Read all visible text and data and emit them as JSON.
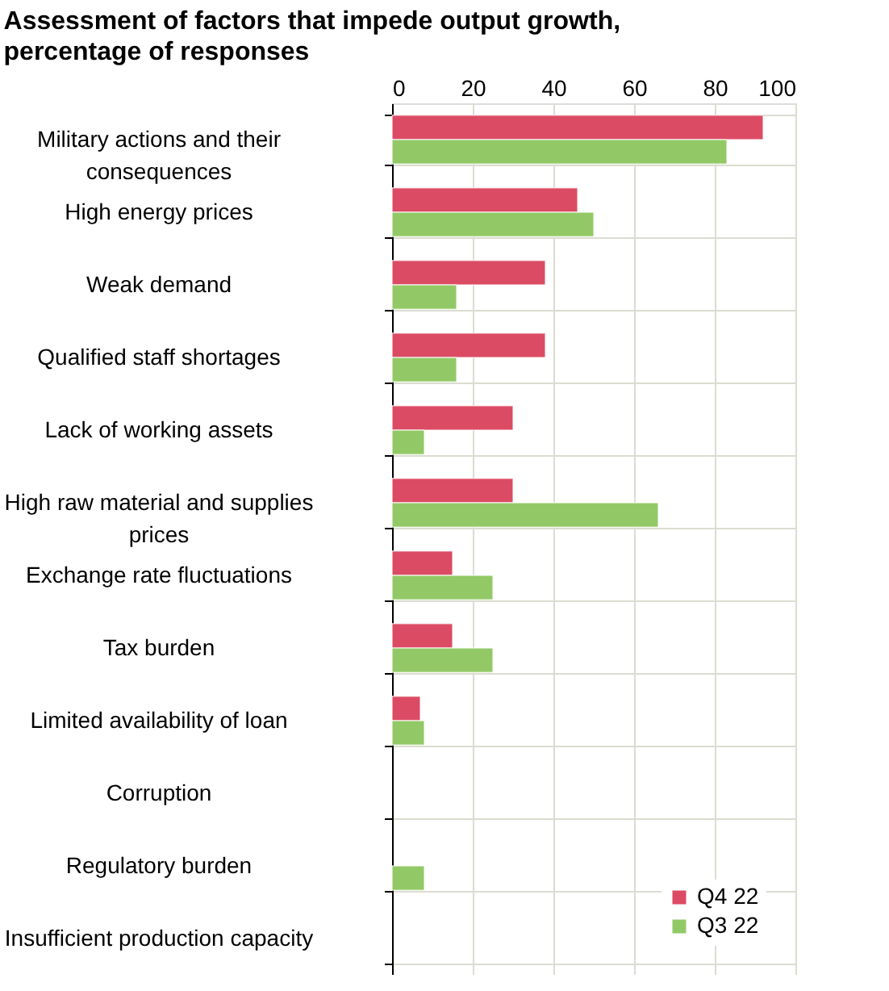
{
  "chart_data": {
    "type": "bar",
    "orientation": "horizontal",
    "title": "Assessment of factors that impede output growth, percentage of responses",
    "categories": [
      "Military actions and their consequences",
      "High energy prices",
      "Weak demand",
      "Qualified staff shortages",
      "Lack of working assets",
      "High raw material and supplies prices",
      "Exchange rate fluctuations",
      "Tax burden",
      "Limited availability of loan",
      "Corruption",
      "Regulatory burden",
      "Insufficient production capacity"
    ],
    "series": [
      {
        "name": "Q4 22",
        "color": "#dc4b64",
        "values": [
          92,
          46,
          38,
          38,
          30,
          30,
          15,
          15,
          7,
          null,
          null,
          null
        ]
      },
      {
        "name": "Q3 22",
        "color": "#92c966",
        "values": [
          83,
          50,
          16,
          16,
          8,
          66,
          25,
          25,
          8,
          null,
          8,
          null
        ]
      }
    ],
    "xlim": [
      0,
      100
    ],
    "xticks": [
      0,
      20,
      40,
      60,
      80,
      100
    ],
    "grid": true,
    "legend": "bottom right"
  }
}
